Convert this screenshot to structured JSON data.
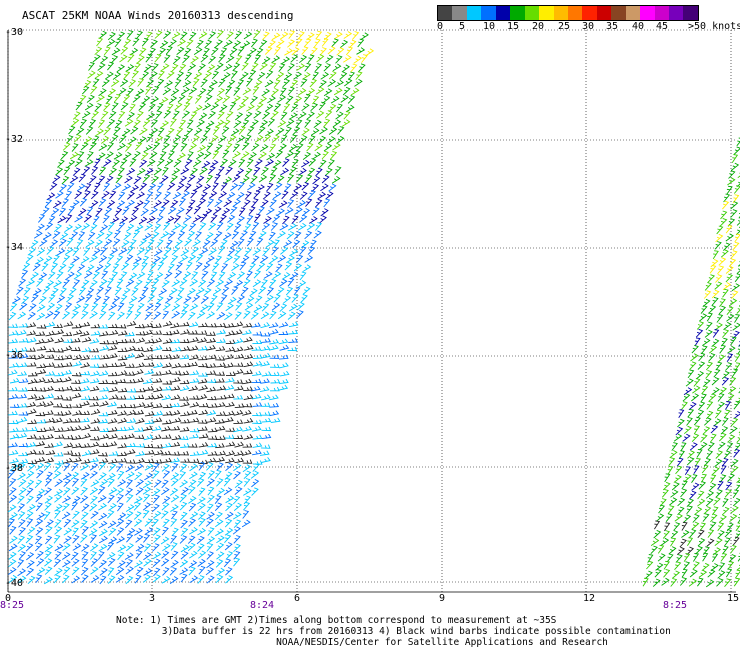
{
  "title": "ASCAT 25KM NOAA Winds 20160313 descending",
  "legend": {
    "colors": [
      "#444444",
      "#888888",
      "#00c8ff",
      "#0070ff",
      "#0000aa",
      "#00aa00",
      "#66dd00",
      "#ffee00",
      "#ffbb00",
      "#ff7700",
      "#ff2200",
      "#cc0000",
      "#884422",
      "#cc9966",
      "#ff00ff",
      "#cc00cc",
      "#7700bb",
      "#440077"
    ],
    "labels": [
      "0",
      "5",
      "10",
      "15",
      "20",
      "25",
      "30",
      "35",
      "40",
      "45",
      ">50 knots"
    ]
  },
  "axes": {
    "lat_labels": [
      "-30",
      "-32",
      "-34",
      "-36",
      "-38",
      "-40"
    ],
    "lon_labels": [
      "0",
      "3",
      "6",
      "9",
      "12",
      "15"
    ],
    "time_labels": [
      "8:25",
      "8:24",
      "8:25"
    ]
  },
  "notes": {
    "line1": "Note: 1) Times are GMT 2)Times along bottom correspond to measurement at ~35S",
    "line2": "3)Data buffer is 22 hrs from 20160313 4) Black wind barbs indicate possible contamination",
    "line3": "NOAA/NESDIS/Center for Satellite Applications and Research"
  }
}
